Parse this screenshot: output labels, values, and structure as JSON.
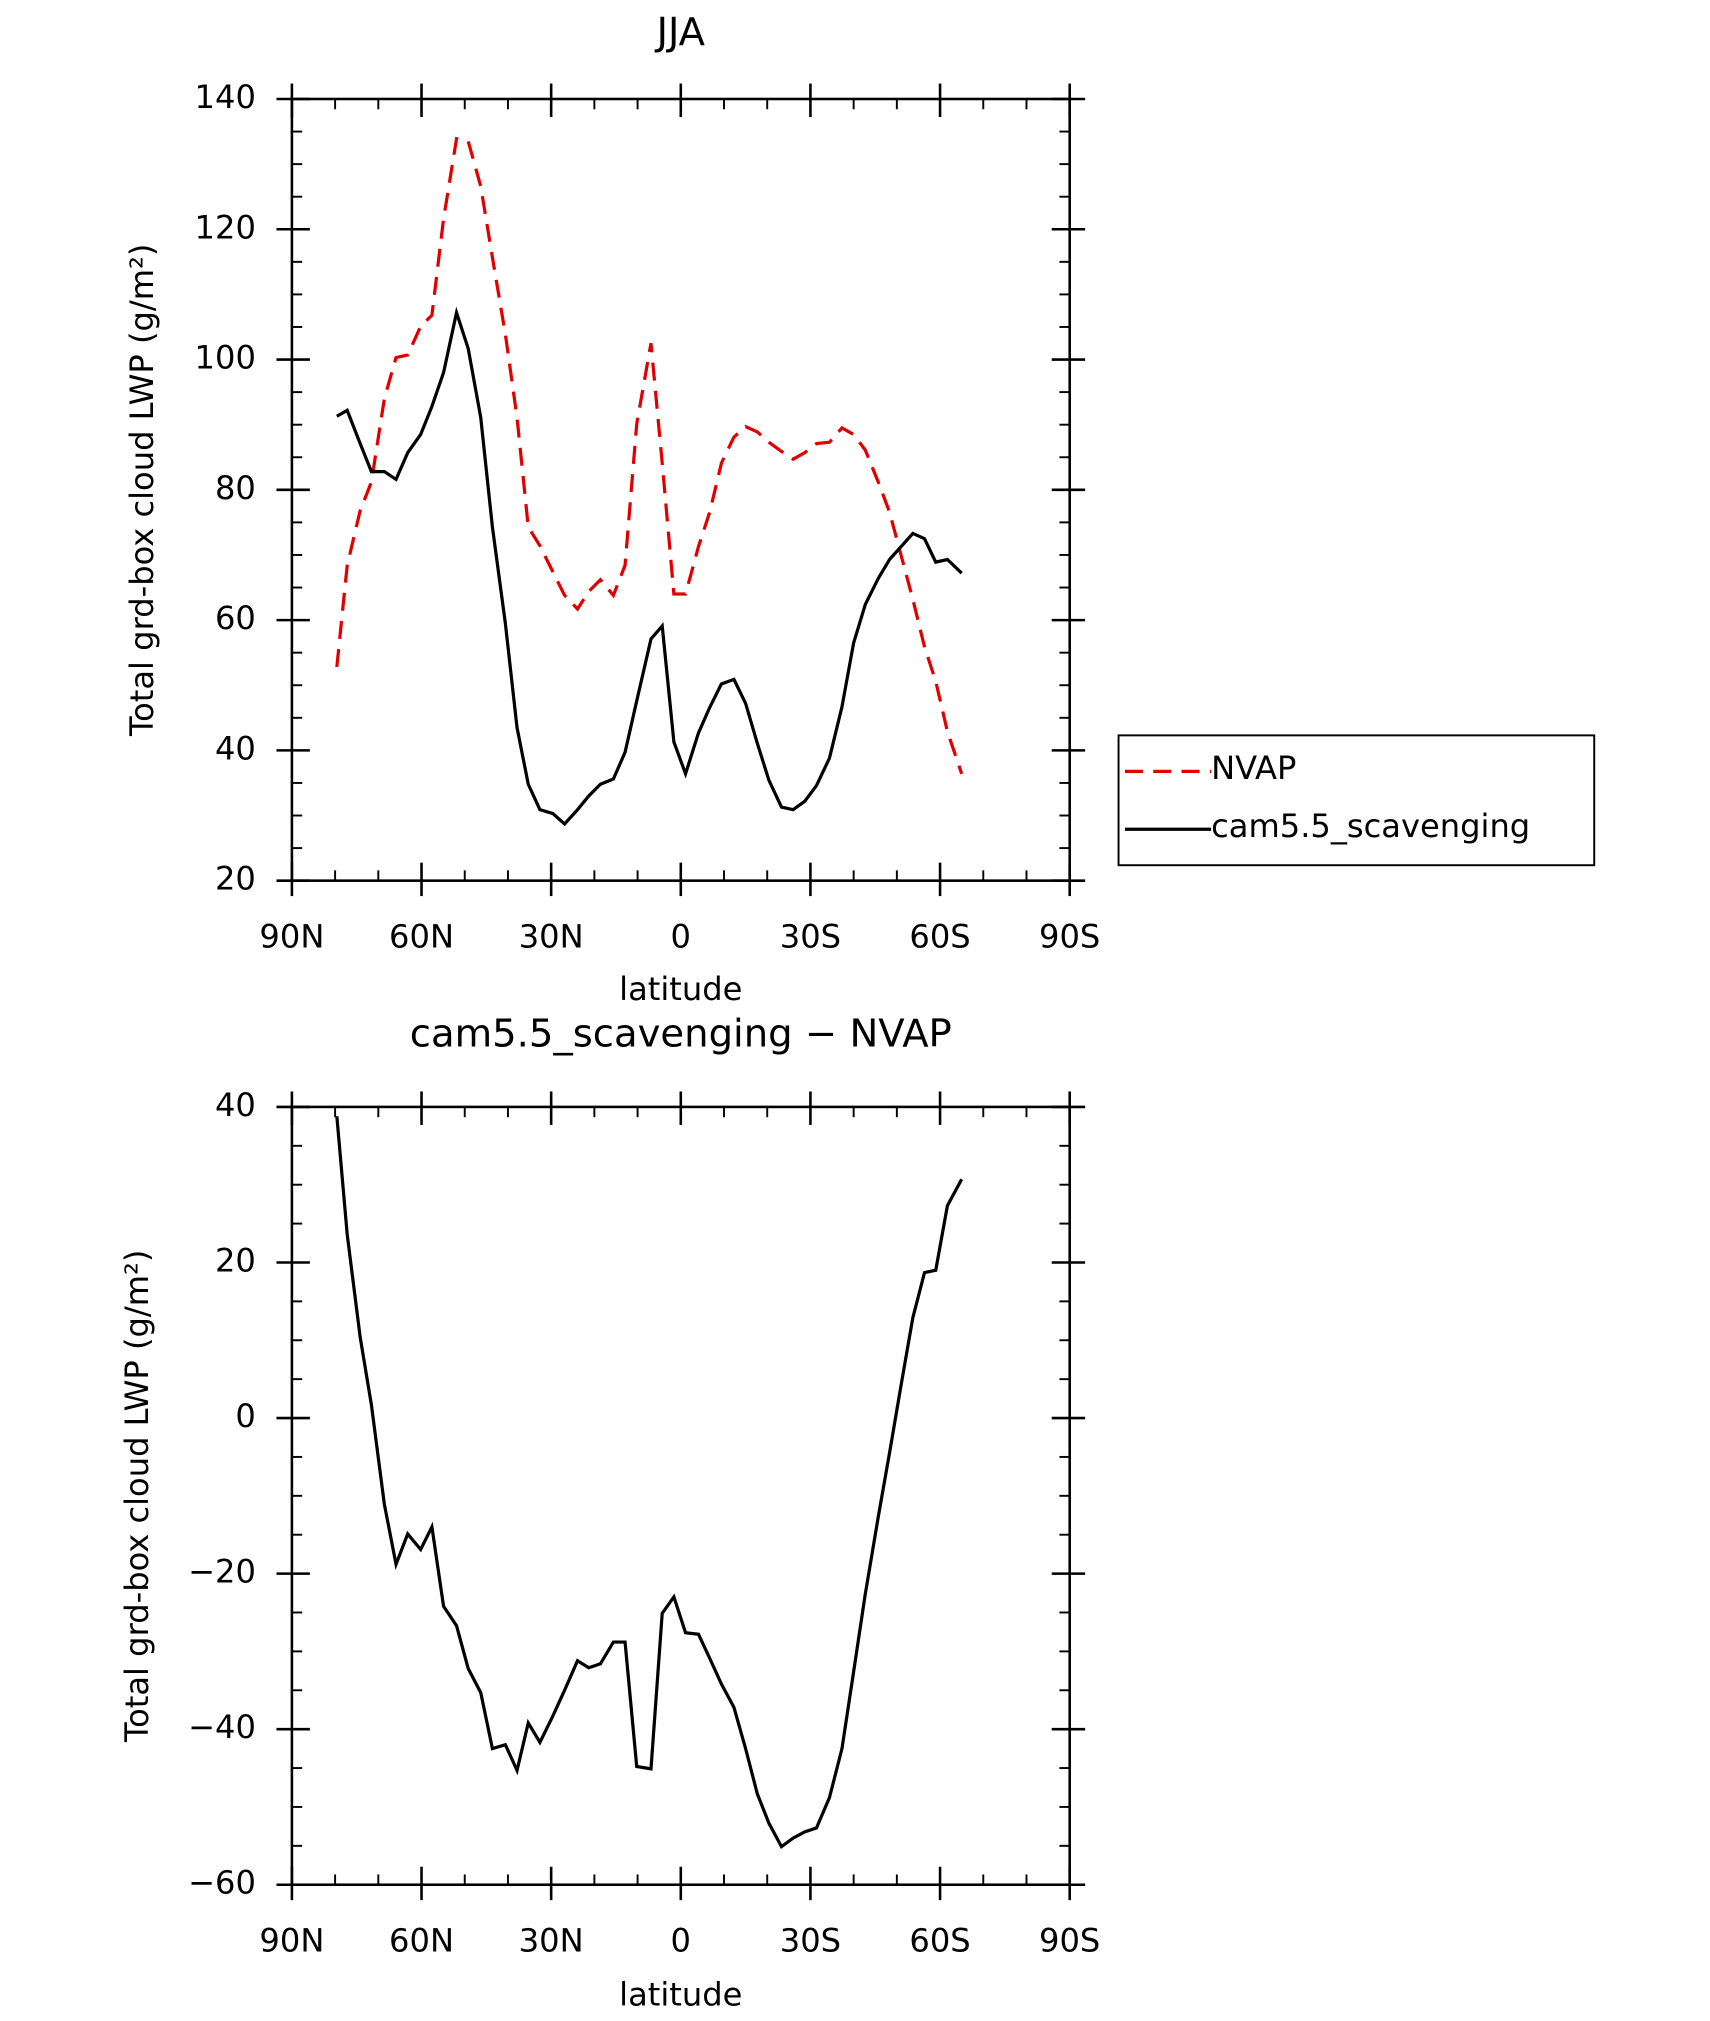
{
  "chart_data": [
    {
      "type": "line",
      "title": "JJA",
      "xlabel": "latitude",
      "ylabel": "Total grd-box cloud LWP (g/m²)",
      "legend": "right",
      "x": [
        79.6,
        77.2,
        74.2,
        71.6,
        68.6,
        65.9,
        63.2,
        60.2,
        57.6,
        54.9,
        51.9,
        49.2,
        46.3,
        43.6,
        40.6,
        37.9,
        35.3,
        32.6,
        29.6,
        26.9,
        23.9,
        21.3,
        18.6,
        15.6,
        12.9,
        10.2,
        6.9,
        4.3,
        1.6,
        -1.1,
        -4.1,
        -6.7,
        -9.4,
        -12.3,
        -15.0,
        -17.7,
        -20.4,
        -23.3,
        -26.0,
        -28.7,
        -31.4,
        -34.4,
        -37.3,
        -40.0,
        -42.7,
        -45.7,
        -48.3,
        -51.0,
        -53.7,
        -56.4,
        -59.0,
        -61.7,
        -65.0
      ],
      "series": [
        {
          "name": "NVAP",
          "color": "#e00000",
          "linestyle": "dashed",
          "values": [
            52.8,
            68.4,
            76.8,
            81.2,
            94.0,
            100.3,
            100.7,
            105.1,
            106.8,
            121.6,
            133.9,
            133.5,
            126.6,
            115.7,
            103.9,
            91.1,
            74.3,
            71.4,
            67.4,
            63.8,
            61.7,
            64.4,
            66.2,
            63.8,
            68.4,
            90.1,
            102.5,
            84.1,
            64.0,
            64.0,
            71.3,
            76.6,
            84.1,
            88.1,
            89.7,
            88.9,
            87.3,
            85.9,
            84.7,
            85.7,
            87.1,
            87.3,
            89.5,
            88.5,
            86.1,
            81.2,
            76.6,
            69.9,
            63.2,
            55.9,
            50.6,
            42.9,
            36.4
          ]
        },
        {
          "name": "cam5.5_scavenging",
          "color": "#000000",
          "linestyle": "solid",
          "values": [
            91.3,
            92.2,
            87.1,
            82.8,
            82.8,
            81.6,
            85.7,
            88.5,
            92.8,
            98.0,
            107.2,
            101.7,
            91.1,
            74.3,
            59.5,
            43.5,
            34.8,
            30.9,
            30.3,
            28.7,
            30.9,
            33.0,
            34.8,
            35.6,
            39.7,
            47.6,
            57.1,
            59.1,
            41.3,
            36.4,
            42.7,
            46.6,
            50.2,
            50.9,
            47.2,
            41.1,
            35.4,
            31.3,
            30.9,
            32.2,
            34.6,
            38.8,
            46.7,
            56.5,
            62.4,
            66.4,
            69.3,
            71.3,
            73.3,
            72.5,
            68.9,
            69.3,
            67.2
          ]
        }
      ],
      "xlim": [
        90,
        -90
      ],
      "xticks": [
        {
          "value": 90,
          "label": "90N"
        },
        {
          "value": 60,
          "label": "60N"
        },
        {
          "value": 30,
          "label": "30N"
        },
        0,
        {
          "value": -30,
          "label": "30S"
        },
        {
          "value": -60,
          "label": "60S"
        },
        {
          "value": -90,
          "label": "90S"
        }
      ],
      "ylim": [
        20,
        140
      ],
      "yticks": [
        20,
        40,
        60,
        80,
        100,
        120,
        140
      ]
    },
    {
      "type": "line",
      "title": "cam5.5_scavenging − NVAP",
      "xlabel": "latitude",
      "ylabel": "Total grd-box cloud LWP (g/m²)",
      "x": [
        79.6,
        77.2,
        74.2,
        71.6,
        68.6,
        65.9,
        63.2,
        60.2,
        57.6,
        54.9,
        51.9,
        49.2,
        46.3,
        43.6,
        40.6,
        37.9,
        35.3,
        32.6,
        29.6,
        26.9,
        23.9,
        21.3,
        18.6,
        15.6,
        12.9,
        10.2,
        6.9,
        4.3,
        1.6,
        -1.1,
        -4.1,
        -6.7,
        -9.4,
        -12.3,
        -15.0,
        -17.7,
        -20.4,
        -23.3,
        -26.0,
        -28.7,
        -31.4,
        -34.4,
        -37.3,
        -40.0,
        -42.7,
        -45.7,
        -48.3,
        -51.0,
        -53.7,
        -56.4,
        -59.0,
        -61.7,
        -65.0
      ],
      "series": [
        {
          "color": "#000000",
          "linestyle": "solid",
          "values": [
            38.8,
            23.6,
            10.4,
            1.7,
            -11.1,
            -18.8,
            -14.9,
            -16.9,
            -14.0,
            -24.2,
            -26.7,
            -32.2,
            -35.3,
            -42.5,
            -42.0,
            -45.3,
            -39.2,
            -41.7,
            -38.3,
            -35.0,
            -31.2,
            -32.1,
            -31.6,
            -28.8,
            -28.8,
            -44.8,
            -45.1,
            -25.1,
            -23.0,
            -27.6,
            -27.8,
            -30.9,
            -34.2,
            -37.2,
            -42.5,
            -48.3,
            -52.1,
            -55.1,
            -54.0,
            -53.2,
            -52.7,
            -48.8,
            -42.5,
            -32.6,
            -22.6,
            -12.7,
            -4.5,
            4.3,
            12.9,
            18.7,
            19.0,
            27.3,
            30.7
          ]
        }
      ],
      "xlim": [
        90,
        -90
      ],
      "xticks": [
        {
          "value": 90,
          "label": "90N"
        },
        {
          "value": 60,
          "label": "60N"
        },
        {
          "value": 30,
          "label": "30N"
        },
        0,
        {
          "value": -30,
          "label": "30S"
        },
        {
          "value": -60,
          "label": "60S"
        },
        {
          "value": -90,
          "label": "90S"
        }
      ],
      "ylim": [
        -60,
        40
      ],
      "yticks": [
        {
          "value": -60,
          "label": "−60"
        },
        {
          "value": -40,
          "label": "−40"
        },
        {
          "value": -20,
          "label": "−20"
        },
        0,
        20,
        40
      ]
    }
  ]
}
